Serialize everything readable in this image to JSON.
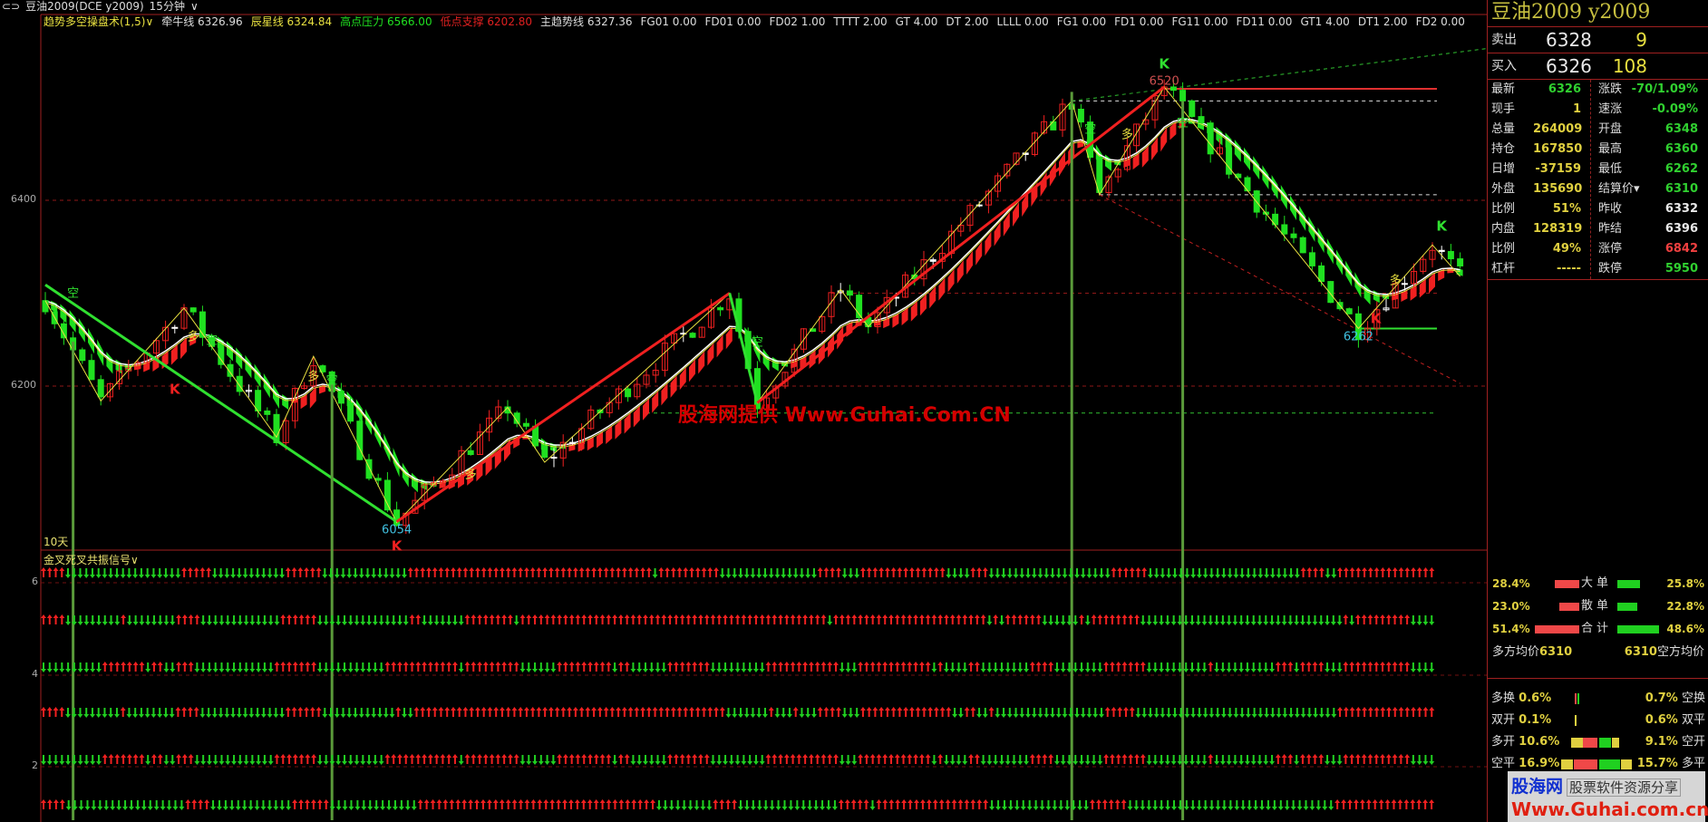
{
  "window": {
    "link_icon": "link-icon",
    "symbol": "豆油2009(DCE y2009)",
    "period": "15分钟",
    "period_chevron": "chevron-down-icon"
  },
  "indicator_bar": [
    {
      "label": "趋势多空操盘术(1,5)∨",
      "color": "#e8e040"
    },
    {
      "label": "牵牛线 6326.96",
      "color": "#dddddd"
    },
    {
      "label": "辰星线 6324.84",
      "color": "#e8e040"
    },
    {
      "label": "高点压力 6566.00",
      "color": "#20e020"
    },
    {
      "label": "低点支撑 6202.80",
      "color": "#e02020"
    },
    {
      "label": "主趋势线 6327.36",
      "color": "#dddddd"
    },
    {
      "label": "FG01 0.00",
      "color": "#dddddd"
    },
    {
      "label": "FD01 0.00",
      "color": "#dddddd"
    },
    {
      "label": "FD02 1.00",
      "color": "#dddddd"
    },
    {
      "label": "TTTT 2.00",
      "color": "#dddddd"
    },
    {
      "label": "GT 4.00",
      "color": "#dddddd"
    },
    {
      "label": "DT 2.00",
      "color": "#dddddd"
    },
    {
      "label": "LLLL 0.00",
      "color": "#dddddd"
    },
    {
      "label": "FG1 0.00",
      "color": "#dddddd"
    },
    {
      "label": "FD1 0.00",
      "color": "#dddddd"
    },
    {
      "label": "FG11 0.00",
      "color": "#dddddd"
    },
    {
      "label": "FD11 0.00",
      "color": "#dddddd"
    },
    {
      "label": "GT1 4.00",
      "color": "#dddddd"
    },
    {
      "label": "DT1 2.00",
      "color": "#dddddd"
    },
    {
      "label": "FD2 0.00",
      "color": "#dddddd"
    }
  ],
  "chart_data": {
    "type": "candlestick",
    "price_axis_ticks": [
      6400,
      6200
    ],
    "bars": 154,
    "zigzag": [
      [
        0,
        6292
      ],
      [
        6,
        6184
      ],
      [
        15,
        6284
      ],
      [
        25,
        6145
      ],
      [
        29,
        6232
      ],
      [
        38,
        6053
      ],
      [
        50,
        6177
      ],
      [
        54,
        6118
      ],
      [
        74,
        6300
      ],
      [
        77,
        6182
      ],
      [
        86,
        6304
      ],
      [
        89,
        6264
      ],
      [
        111,
        6507
      ],
      [
        114,
        6406
      ],
      [
        121,
        6522
      ],
      [
        142,
        6262
      ],
      [
        150,
        6352
      ],
      [
        153,
        6318
      ]
    ],
    "trendlines": [
      {
        "from": [
          0,
          6309
        ],
        "to": [
          38,
          6054
        ],
        "color": "#30e030"
      },
      {
        "from": [
          38,
          6054
        ],
        "to": [
          74,
          6300
        ],
        "color": "#f02020"
      },
      {
        "from": [
          74,
          6300
        ],
        "to": [
          77,
          6182
        ],
        "color": "#30e030"
      },
      {
        "from": [
          77,
          6182
        ],
        "to": [
          121,
          6522
        ],
        "color": "#f02020"
      }
    ],
    "levels": [
      {
        "price": 6520,
        "from": 121,
        "color": "#e03030",
        "style": "solid"
      },
      {
        "price": 6507,
        "from": 111,
        "color": "#dddddd",
        "style": "dashed"
      },
      {
        "price": 6406,
        "from": 114,
        "color": "#dddddd",
        "style": "dashed"
      },
      {
        "price": 6400,
        "from": 0,
        "color": "#901818",
        "style": "dashed"
      },
      {
        "price": 6300,
        "from": 85,
        "color": "#901818",
        "style": "dashed"
      },
      {
        "price": 6200,
        "from": 0,
        "color": "#901818",
        "style": "dashed"
      },
      {
        "price": 6171,
        "from": 65,
        "color": "#30c030",
        "style": "dashed"
      },
      {
        "price": 6262,
        "from": 142,
        "color": "#30e030",
        "style": "solid"
      }
    ],
    "rays": [
      {
        "from": [
          111,
          6507
        ],
        "to": [
          158,
          6566
        ],
        "color": "#30c030"
      },
      {
        "from": [
          114,
          6406
        ],
        "to": [
          153,
          6202.8
        ],
        "color": "#c02020"
      }
    ],
    "signal_lines": [
      3,
      31,
      111,
      123
    ],
    "markers": [
      {
        "bar": 3,
        "price": 6300,
        "text": "空",
        "color": "#30e030"
      },
      {
        "bar": 18,
        "price": 6249,
        "text": "空",
        "color": "#30e030"
      },
      {
        "bar": 31,
        "price": 6206,
        "text": "空",
        "color": "#30e030"
      },
      {
        "bar": 77,
        "price": 6247,
        "text": "空",
        "color": "#30e030"
      },
      {
        "bar": 113,
        "price": 6476,
        "text": "空",
        "color": "#30e030"
      },
      {
        "bar": 123,
        "price": 6483,
        "text": "空",
        "color": "#30e030"
      },
      {
        "bar": 16,
        "price": 6253,
        "text": "多",
        "color": "#e8e040"
      },
      {
        "bar": 29,
        "price": 6210,
        "text": "多",
        "color": "#e8e040"
      },
      {
        "bar": 46,
        "price": 6104,
        "text": "多",
        "color": "#e8e040"
      },
      {
        "bar": 117,
        "price": 6470,
        "text": "多",
        "color": "#e8e040"
      },
      {
        "bar": 146,
        "price": 6313,
        "text": "多",
        "color": "#e8e040"
      },
      {
        "bar": 14,
        "price": 6196,
        "text": "K",
        "color": "#f02020"
      },
      {
        "bar": 38,
        "price": 6040,
        "text": "K",
        "color": "#f02020"
      },
      {
        "bar": 143,
        "price": 6261,
        "text": "K",
        "color": "#f02020"
      },
      {
        "bar": 121,
        "price": 6536,
        "text": "K",
        "color": "#30e030"
      },
      {
        "bar": 151,
        "price": 6372,
        "text": "K",
        "color": "#30e030"
      },
      {
        "bar": 121,
        "price": 6528,
        "text": "6520",
        "color": "#d05050"
      },
      {
        "bar": 38,
        "price": 6045,
        "text": "6054",
        "color": "#40c0e0"
      },
      {
        "bar": 142,
        "price": 6253,
        "text": "6262",
        "color": "#40c0e0"
      }
    ],
    "days_label": "10天"
  },
  "watermark": "股海网提供 Www.Guhai.Com.CN",
  "lower": {
    "title": "金叉死叉共振信号∨",
    "axis": [
      6,
      4,
      2
    ],
    "rows": [
      "U4 D19 U5 D12 U6 D14 U40 D1 U10 D16 U4 D3 U14 D4 U3 D20 U6 D25 U4 D2 U16",
      "U4 D9 U1 D8 U4 D13 U6 D15 U2 D7 U8 D1 U50 D1 U25 D1 U1 D1 U6 D6 U1 D1 U8 D33 U1 D1 U9 D4",
      "D10 U7 D1 U2 D2 U3 D13 U7 D11 U12 D1 U9 D6 U9 D1 U2 D6 U7 D9 U12 D3 U12 D1 U1 D4 U2 D8 U4 D8 U7 D10 U1 D10 U3 D1 U4 D3 U11 D4",
      "U4 D9 U1 D8 U4 D14 U6 D12 U1 D2 U51 D7 U1 D3 U1 D3 U4 D3 U15 D2 U2 D2 U1 D18 U5 D33 U16",
      "D10 U7 D1 U2 D2 U3 D13 U7 D11 U12 D1 U9 D6 U9 D1 U2 D6 U7 D9 U12 D3 U12 D1 U1 D4 U2 D8 U4 D8 U7 D10 U1 D10 U3 D1 U4 D3 U11 D4",
      "U4 D19 U4 D13 U6 D14 U38 D9 U4 D16 U5 D1 U18 D16 U6 D33 U16"
    ]
  },
  "quote": {
    "title": "豆油2009  y2009",
    "ask": {
      "label": "卖出",
      "price": "6328",
      "vol": "9"
    },
    "bid": {
      "label": "买入",
      "price": "6326",
      "vol": "108"
    },
    "rows": [
      {
        "l1": "最新",
        "v1": "6326",
        "c1": "#30d030",
        "l2": "涨跌",
        "v2": "-70/1.09%",
        "c2": "#30d030"
      },
      {
        "l1": "现手",
        "v1": "1",
        "c1": "#e0d040",
        "l2": "速涨",
        "v2": "-0.09%",
        "c2": "#30d030"
      },
      {
        "l1": "总量",
        "v1": "264009",
        "c1": "#e0d040",
        "l2": "开盘",
        "v2": "6348",
        "c2": "#30d030"
      },
      {
        "l1": "持仓",
        "v1": "167850",
        "c1": "#e0d040",
        "l2": "最高",
        "v2": "6360",
        "c2": "#30d030"
      },
      {
        "l1": "日增",
        "v1": "-37159",
        "c1": "#e0d040",
        "l2": "最低",
        "v2": "6262",
        "c2": "#30d030"
      },
      {
        "l1": "外盘",
        "v1": "135690",
        "c1": "#e0d040",
        "l2": "结算价▾",
        "v2": "6310",
        "c2": "#30d030"
      },
      {
        "l1": "比例",
        "v1": "51%",
        "c1": "#e0d040",
        "l2": "昨收",
        "v2": "6332",
        "c2": "#e8e8e8"
      },
      {
        "l1": "内盘",
        "v1": "128319",
        "c1": "#e0d040",
        "l2": "昨结",
        "v2": "6396",
        "c2": "#e8e8e8"
      },
      {
        "l1": "比例",
        "v1": "49%",
        "c1": "#e0d040",
        "l2": "涨停",
        "v2": "6842",
        "c2": "#f04040"
      },
      {
        "l1": "杠杆",
        "v1": "-----",
        "c1": "#e0d040",
        "l2": "跌停",
        "v2": "5950",
        "c2": "#30d030"
      }
    ],
    "flow": [
      {
        "left": "28.4%",
        "name": "大单",
        "right": "25.8%",
        "buy": 28.4,
        "sell": 25.8
      },
      {
        "left": "23.0%",
        "name": "散单",
        "right": "22.8%",
        "buy": 23.0,
        "sell": 22.8
      },
      {
        "left": "51.4%",
        "name": "合计",
        "right": "48.6%",
        "buy": 51.4,
        "sell": 48.6
      }
    ],
    "avg_left_label": "多方均价",
    "avg_left": "6310",
    "avg_right": "6310",
    "avg_right_label": "空方均价",
    "stats": [
      {
        "l": "多换",
        "lv": "0.6%",
        "rv": "0.7%",
        "r": "空换"
      },
      {
        "l": "双开",
        "lv": "0.1%",
        "rv": "0.6%",
        "r": "双平"
      },
      {
        "l": "多开",
        "lv": "10.6%",
        "rv": "9.1%",
        "r": "空开"
      },
      {
        "l": "空平",
        "lv": "16.9%",
        "rv": "15.7%",
        "r": "多平"
      }
    ]
  },
  "logo": {
    "a": "股海网",
    "b": "股票软件资源分享",
    "c": "Www.Guhai.com.cn"
  },
  "colors": {
    "up": "#f02020",
    "down": "#20e020",
    "border": "#a02020",
    "background": "#000000"
  }
}
